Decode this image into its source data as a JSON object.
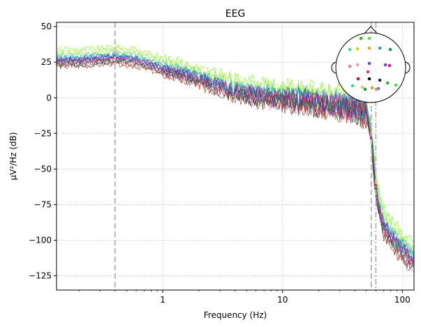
{
  "chart_data": {
    "type": "line",
    "title": "EEG",
    "xlabel": "Frequency (Hz)",
    "ylabel": "µV²/Hz (dB)",
    "x_scale": "log",
    "xlim": [
      0.13,
      125
    ],
    "ylim": [
      -135,
      53
    ],
    "x_ticks": [
      1,
      10,
      100
    ],
    "x_tick_labels": [
      "1",
      "10",
      "100"
    ],
    "y_ticks": [
      50,
      25,
      0,
      -25,
      -50,
      -75,
      -100,
      -125
    ],
    "y_tick_labels": [
      "50",
      "25",
      "0",
      "−25",
      "−50",
      "−75",
      "−100",
      "−125"
    ],
    "grid": true,
    "vertical_markers": [
      {
        "x": 0.4,
        "style": "dashed"
      },
      {
        "x": 55,
        "style": "dashed"
      },
      {
        "x": 60,
        "style": "dash-dot"
      }
    ],
    "series_profile": {
      "x": [
        0.13,
        0.2,
        0.3,
        0.4,
        0.6,
        0.8,
        1,
        1.5,
        2,
        3,
        5,
        8,
        10,
        15,
        20,
        30,
        40,
        50,
        55,
        60,
        65,
        70,
        80,
        90,
        100,
        110,
        125
      ],
      "y": [
        28,
        28,
        29,
        30,
        28,
        25,
        22,
        18,
        15,
        10,
        5,
        2,
        1,
        0,
        -2,
        -4,
        -5,
        -8,
        -25,
        -62,
        -78,
        -88,
        -95,
        -100,
        -104,
        -108,
        -112
      ]
    },
    "series": [
      {
        "color": "#7cfc00",
        "offset": 6
      },
      {
        "color": "#9be86a",
        "offset": 4
      },
      {
        "color": "#c8f04c",
        "offset": 3
      },
      {
        "color": "#5fd06a",
        "offset": 2
      },
      {
        "color": "#36c8a6",
        "offset": 1
      },
      {
        "color": "#2ab0c8",
        "offset": 0
      },
      {
        "color": "#3aa0a0",
        "offset": -1
      },
      {
        "color": "#2f6fdb",
        "offset": 0
      },
      {
        "color": "#6a5cd8",
        "offset": -1
      },
      {
        "color": "#8a3fc8",
        "offset": -2
      },
      {
        "color": "#c02a9a",
        "offset": -2
      },
      {
        "color": "#d8306a",
        "offset": -3
      },
      {
        "color": "#e86aa8",
        "offset": -4
      },
      {
        "color": "#b03030",
        "offset": -5
      },
      {
        "color": "#8b3a1a",
        "offset": -6
      },
      {
        "color": "#1f4e5a",
        "offset": -4
      },
      {
        "color": "#2e8b57",
        "offset": -3
      },
      {
        "color": "#4b2a8a",
        "offset": -1
      }
    ],
    "sensor_colors": [
      "#1fc01f",
      "#4fd84f",
      "#3fd0b0",
      "#d8d020",
      "#e0a020",
      "#2a9f9f",
      "#1f8f6f",
      "#e87aa0",
      "#f0a0b0",
      "#5050e0",
      "#8040d0",
      "#d02060",
      "#e04060",
      "#c01050",
      "#101010",
      "#202060"
    ]
  }
}
